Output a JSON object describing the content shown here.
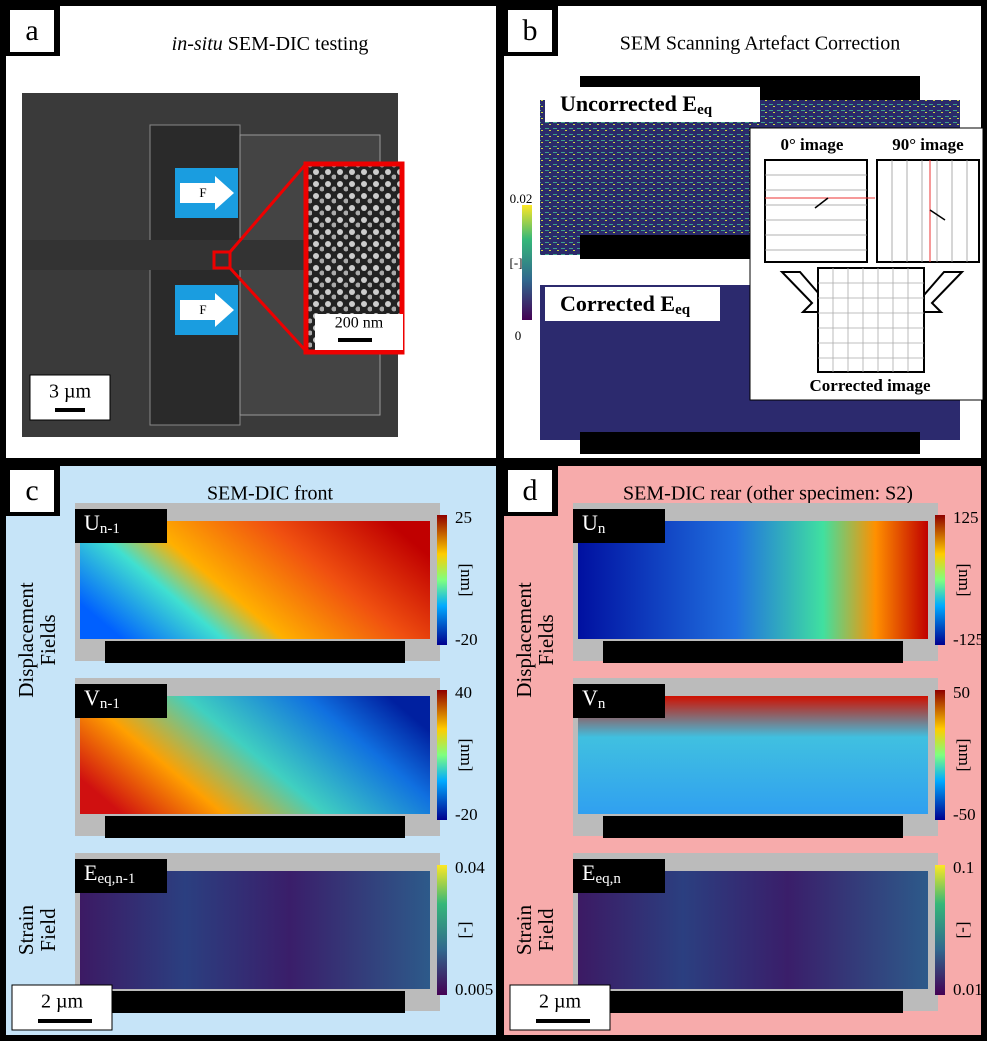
{
  "panels": [
    {
      "label": "a",
      "title_italic": "in-situ",
      "title": " SEM-DIC testing",
      "arrows": [
        "F",
        "F"
      ],
      "inset_scale": "200 nm",
      "scale_bar": "3 µm"
    },
    {
      "label": "b",
      "title": "SEM Scanning Artefact Correction",
      "maps": [
        {
          "name": "Uncorrected E",
          "sub": "eq"
        },
        {
          "name": "Corrected E",
          "sub": "eq"
        }
      ],
      "colorbar": {
        "max": "0.02",
        "unit": "[-]",
        "min": "0"
      },
      "schematic": {
        "image0": "0° image",
        "image90": "90° image",
        "corrected": "Corrected image"
      }
    },
    {
      "label": "c",
      "title": "SEM-DIC front",
      "row_labels": [
        [
          "Displacement",
          "Fields"
        ],
        [
          "Strain",
          "Field"
        ]
      ],
      "fields": [
        {
          "name": "U",
          "sub": "n-1",
          "max": "25",
          "unit": "[nm]",
          "min": "-20"
        },
        {
          "name": "V",
          "sub": "n-1",
          "max": "40",
          "unit": "[nm]",
          "min": "-20"
        },
        {
          "name": "E",
          "sub": "eq,n-1",
          "max": "0.04",
          "unit": "[-]",
          "min": "0.005"
        }
      ],
      "scale_bar": "2 µm"
    },
    {
      "label": "d",
      "title": "SEM-DIC rear (other specimen: S2)",
      "row_labels": [
        [
          "Displacement",
          "Fields"
        ],
        [
          "Strain",
          "Field"
        ]
      ],
      "fields": [
        {
          "name": "U",
          "sub": "n",
          "max": "125",
          "unit": "[nm]",
          "min": "-125"
        },
        {
          "name": "V",
          "sub": "n",
          "max": "50",
          "unit": "[nm]",
          "min": "-50"
        },
        {
          "name": "E",
          "sub": "eq,n",
          "max": "0.1",
          "unit": "[-]",
          "min": "0.01"
        }
      ],
      "scale_bar": "2 µm"
    }
  ]
}
